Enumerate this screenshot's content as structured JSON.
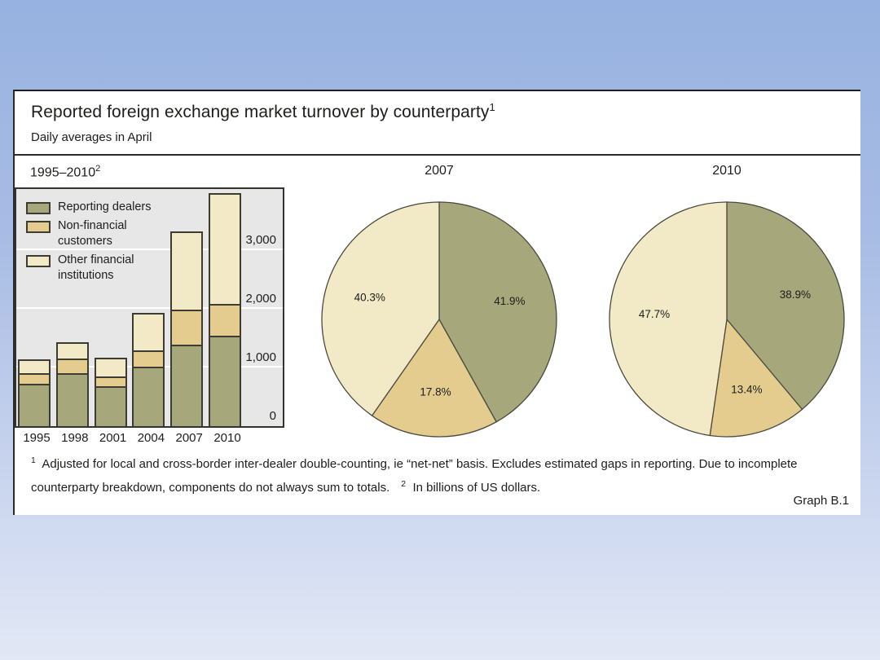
{
  "header": {
    "title": "Reported foreign exchange market turnover by counterparty",
    "title_footnote_marker": "1",
    "subtitle": "Daily averages in April"
  },
  "panels": {
    "bar_title": "1995–2010",
    "bar_title_footnote_marker": "2",
    "pie1_title": "2007",
    "pie2_title": "2010"
  },
  "colors": {
    "reporting_dealers": "#a6a87c",
    "non_financial_customers": "#e3cc8e",
    "other_financial_institutions": "#f2e9c7",
    "plot_background": "#e7e7e7",
    "gridline": "#ffffff",
    "outline": "#3c3c33",
    "pie_stroke": "#4a4a40",
    "panel_background": "#ffffff",
    "slide_gradient_top": "#97b2e0",
    "slide_gradient_bottom": "#e2e8f5",
    "text": "#1d1d1b"
  },
  "legend": {
    "items": [
      {
        "label": "Reporting dealers",
        "color": "#a6a87c"
      },
      {
        "label": "Non-financial\ncustomers",
        "color": "#e3cc8e"
      },
      {
        "label": "Other financial\ninstitutions",
        "color": "#f2e9c7"
      }
    ]
  },
  "chart_data": [
    {
      "type": "bar",
      "stacked": true,
      "title": "1995–2010 — daily average FX turnover by counterparty, in billions of US dollars",
      "categories": [
        "1995",
        "1998",
        "2001",
        "2004",
        "2007",
        "2010"
      ],
      "series": [
        {
          "name": "Reporting dealers",
          "color": "#a6a87c",
          "values": [
            728,
            908,
            689,
            1018,
            1392,
            1548
          ]
        },
        {
          "name": "Non-financial customers",
          "color": "#e3cc8e",
          "values": [
            179,
            242,
            156,
            276,
            593,
            533
          ]
        },
        {
          "name": "Other financial institutions",
          "color": "#f2e9c7",
          "values": [
            230,
            279,
            329,
            634,
            1339,
            1900
          ]
        }
      ],
      "xlabel": "",
      "ylabel": "Billions of US dollars",
      "ylim": [
        0,
        4050
      ],
      "yticks": [
        0,
        1000,
        2000,
        3000
      ],
      "ytick_labels": [
        "0",
        "1,000",
        "2,000",
        "3,000"
      ],
      "grid": true,
      "gridline_color": "#ffffff",
      "legend_position": "inside top-left",
      "ticks_side": "right-inside"
    },
    {
      "type": "pie",
      "title": "2007",
      "start_angle_deg": 0,
      "direction": "clockwise",
      "slices": [
        {
          "name": "Reporting dealers",
          "value": 41.9,
          "label": "41.9%",
          "color": "#a6a87c"
        },
        {
          "name": "Non-financial customers",
          "value": 17.8,
          "label": "17.8%",
          "color": "#e3cc8e"
        },
        {
          "name": "Other financial institutions",
          "value": 40.3,
          "label": "40.3%",
          "color": "#f2e9c7"
        }
      ]
    },
    {
      "type": "pie",
      "title": "2010",
      "start_angle_deg": 0,
      "direction": "clockwise",
      "slices": [
        {
          "name": "Reporting dealers",
          "value": 38.9,
          "label": "38.9%",
          "color": "#a6a87c"
        },
        {
          "name": "Non-financial customers",
          "value": 13.4,
          "label": "13.4%",
          "color": "#e3cc8e"
        },
        {
          "name": "Other financial institutions",
          "value": 47.7,
          "label": "47.7%",
          "color": "#f2e9c7"
        }
      ]
    }
  ],
  "footnote": {
    "marker1": "1",
    "text1": "Adjusted for local and cross-border inter-dealer double-counting, ie “net-net” basis. Excludes estimated gaps in reporting. Due to incomplete counterparty breakdown, components do not always sum to totals.",
    "marker2": "2",
    "text2": "In billions of US dollars."
  },
  "graph_label": "Graph B.1"
}
